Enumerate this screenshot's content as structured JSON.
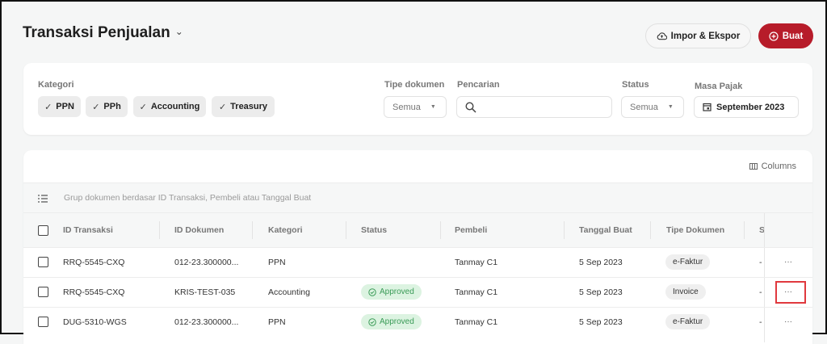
{
  "header": {
    "title": "Transaksi Penjualan",
    "import_export": "Impor & Ekspor",
    "create": "Buat"
  },
  "colors": {
    "primary": "#b71c2a",
    "approved_bg": "#dcf3e1",
    "approved_text": "#3a9b57"
  },
  "filters": {
    "kategori_label": "Kategori",
    "chips": [
      {
        "label": "PPN",
        "checked": true
      },
      {
        "label": "PPh",
        "checked": true
      },
      {
        "label": "Accounting",
        "checked": true
      },
      {
        "label": "Treasury",
        "checked": true
      }
    ],
    "tipe_label": "Tipe dokumen",
    "tipe_value": "Semua",
    "search_label": "Pencarian",
    "search_value": "",
    "status_label": "Status",
    "status_value": "Semua",
    "masa_label": "Masa Pajak",
    "masa_value": "September 2023"
  },
  "table": {
    "columns_button": "Columns",
    "group_hint": "Grup dokumen berdasar ID Transaksi, Pembeli atau Tanggal Buat",
    "headers": [
      "ID Transaksi",
      "ID Dokumen",
      "Kategori",
      "Status",
      "Pembeli",
      "Tanggal Buat",
      "Tipe Dokumen",
      "S"
    ],
    "rows": [
      {
        "id": "RRQ-5545-CXQ",
        "doc": "012-23.300000...",
        "cat": "PPN",
        "status": "",
        "buyer": "Tanmay C1",
        "date": "5 Sep 2023",
        "type": "e-Faktur",
        "s": "-"
      },
      {
        "id": "RRQ-5545-CXQ",
        "doc": "KRIS-TEST-035",
        "cat": "Accounting",
        "status": "Approved",
        "buyer": "Tanmay C1",
        "date": "5 Sep 2023",
        "type": "Invoice",
        "s": "-"
      },
      {
        "id": "DUG-5310-WGS",
        "doc": "012-23.300000...",
        "cat": "PPN",
        "status": "Approved",
        "buyer": "Tanmay C1",
        "date": "5 Sep 2023",
        "type": "e-Faktur",
        "s": "-"
      }
    ],
    "more": "···"
  }
}
